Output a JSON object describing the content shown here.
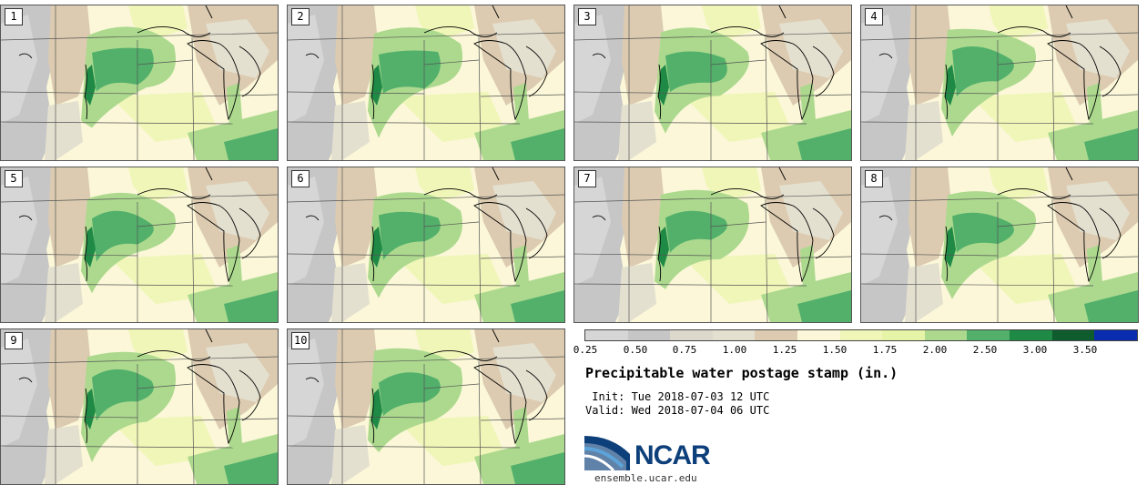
{
  "colors": {
    "bins": [
      "#d6d6d6",
      "#c6c6c6",
      "#dcd8cc",
      "#e4e0d0",
      "#dccbb0",
      "#fbf7d8",
      "#f0f6b8",
      "#e6f4a8",
      "#acd98e",
      "#52b06b",
      "#1e8a46",
      "#0f5c2f",
      "#0a2cae"
    ],
    "state_lines": "#555555",
    "lake_lines": "#000000"
  },
  "panels": [
    {
      "member": "1"
    },
    {
      "member": "2"
    },
    {
      "member": "3"
    },
    {
      "member": "4"
    },
    {
      "member": "5"
    },
    {
      "member": "6"
    },
    {
      "member": "7"
    },
    {
      "member": "8"
    },
    {
      "member": "9"
    },
    {
      "member": "10"
    }
  ],
  "legend": {
    "ticks": [
      "0.25",
      "0.50",
      "0.75",
      "1.00",
      "1.25",
      "1.50",
      "1.75",
      "2.00",
      "2.50",
      "3.00",
      "3.50"
    ]
  },
  "title": "Precipitable water postage stamp (in.)",
  "init": " Init: Tue 2018-07-03 12 UTC",
  "valid": "Valid: Wed 2018-07-04 06 UTC",
  "logo": {
    "word": "NCAR",
    "url": "ensemble.ucar.edu"
  }
}
